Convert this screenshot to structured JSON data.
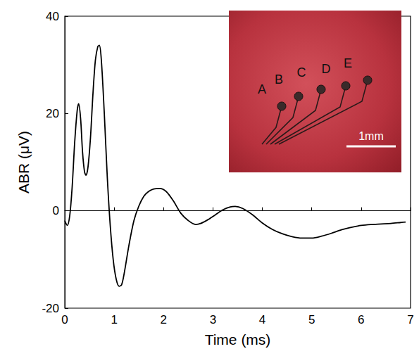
{
  "chart_data": {
    "type": "line",
    "x_label": "Time (ms)",
    "y_label": "ABR (μV)",
    "xlim": [
      0,
      7
    ],
    "xticks": [
      0,
      1,
      2,
      3,
      4,
      5,
      6,
      7
    ],
    "ylim": [
      -20,
      40
    ],
    "yticks": [
      -20,
      0,
      20,
      40
    ],
    "grid": false,
    "color": "#000000",
    "x": [
      0,
      0.05,
      0.1,
      0.15,
      0.2,
      0.25,
      0.28,
      0.32,
      0.36,
      0.4,
      0.43,
      0.47,
      0.52,
      0.57,
      0.62,
      0.67,
      0.7,
      0.74,
      0.8,
      0.86,
      0.92,
      0.98,
      1.04,
      1.1,
      1.15,
      1.2,
      1.3,
      1.4,
      1.5,
      1.6,
      1.7,
      1.8,
      1.92,
      2.05,
      2.2,
      2.35,
      2.5,
      2.65,
      2.75,
      2.9,
      3.05,
      3.2,
      3.35,
      3.45,
      3.6,
      3.8,
      4.0,
      4.2,
      4.4,
      4.6,
      4.8,
      5.0,
      5.2,
      5.4,
      5.6,
      5.8,
      6.0,
      6.2,
      6.4,
      6.6,
      6.8,
      6.9
    ],
    "values": [
      -2,
      -3,
      -1,
      5,
      14,
      20.5,
      22,
      19,
      12,
      8,
      7.3,
      9,
      15,
      24,
      31,
      33.8,
      34,
      31,
      20,
      7,
      -3,
      -10,
      -14,
      -15.5,
      -15.2,
      -13,
      -7,
      -2,
      1,
      3,
      4,
      4.5,
      4.6,
      4,
      2,
      -0.5,
      -2,
      -2.8,
      -2.6,
      -1.8,
      -0.8,
      0.2,
      0.8,
      0.9,
      0.5,
      -0.8,
      -2.5,
      -3.8,
      -4.7,
      -5.3,
      -5.6,
      -5.6,
      -5.2,
      -4.6,
      -3.9,
      -3.4,
      -3.0,
      -2.8,
      -2.7,
      -2.6,
      -2.4,
      -2.3
    ],
    "inset_labels": [
      "A",
      "B",
      "C",
      "D",
      "E"
    ],
    "scale_bar": "1mm"
  }
}
